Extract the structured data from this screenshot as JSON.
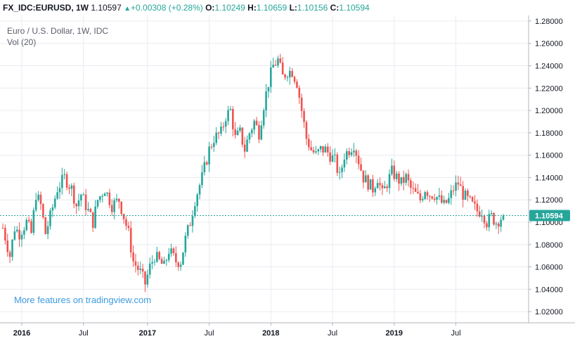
{
  "header": {
    "symbol": "FX_IDC:EURUSD, 1W",
    "last": "1.10597",
    "change_arrow": "▲",
    "change": "+0.00308 (+0.28%)",
    "open_label": "O:",
    "open": "1.10249",
    "high_label": "H:",
    "high": "1.10659",
    "low_label": "L:",
    "low": "1.10156",
    "close_label": "C:",
    "close": "1.10594"
  },
  "legend": {
    "title": "Euro / U.S. Dollar, 1W, IDC",
    "volume": "Vol (20)"
  },
  "watermark": "More features on tradingview.com",
  "last_price_label": "1.10594",
  "colors": {
    "up": "#26a69a",
    "down": "#ef5350",
    "grid": "#e9ecf1",
    "axis": "#b2b5be",
    "last_line": "#26a69a"
  },
  "chart_data": {
    "type": "candlestick",
    "title": "Euro / U.S. Dollar, 1W, IDC",
    "y_ticks": [
      "1.28000",
      "1.26000",
      "1.24000",
      "1.22000",
      "1.20000",
      "1.18000",
      "1.16000",
      "1.14000",
      "1.12000",
      "1.10000",
      "1.08000",
      "1.06000",
      "1.04000",
      "1.02000"
    ],
    "ylim": [
      1.01,
      1.285
    ],
    "x_ticks": [
      {
        "label": "2016",
        "year": true
      },
      {
        "label": "Jul",
        "year": false
      },
      {
        "label": "2017",
        "year": true
      },
      {
        "label": "Jul",
        "year": false
      },
      {
        "label": "2018",
        "year": true
      },
      {
        "label": "Jul",
        "year": false
      },
      {
        "label": "2019",
        "year": true
      },
      {
        "label": "Jul",
        "year": false
      }
    ],
    "x_tick_weeks": [
      8,
      34,
      61,
      87,
      113,
      139,
      165,
      191
    ],
    "start_week": 0,
    "end_week": 211,
    "last_close": 1.10594,
    "weekly_close_path": [
      [
        0,
        1.095
      ],
      [
        3,
        1.07
      ],
      [
        5,
        1.095
      ],
      [
        7,
        1.09
      ],
      [
        10,
        1.1
      ],
      [
        12,
        1.09
      ],
      [
        14,
        1.125
      ],
      [
        16,
        1.115
      ],
      [
        18,
        1.09
      ],
      [
        20,
        1.105
      ],
      [
        23,
        1.13
      ],
      [
        26,
        1.14
      ],
      [
        29,
        1.13
      ],
      [
        31,
        1.115
      ],
      [
        33,
        1.125
      ],
      [
        36,
        1.11
      ],
      [
        38,
        1.1
      ],
      [
        40,
        1.12
      ],
      [
        43,
        1.13
      ],
      [
        46,
        1.115
      ],
      [
        49,
        1.12
      ],
      [
        51,
        1.105
      ],
      [
        53,
        1.09
      ],
      [
        55,
        1.065
      ],
      [
        58,
        1.055
      ],
      [
        60,
        1.045
      ],
      [
        62,
        1.06
      ],
      [
        64,
        1.07
      ],
      [
        66,
        1.065
      ],
      [
        68,
        1.06
      ],
      [
        70,
        1.075
      ],
      [
        73,
        1.065
      ],
      [
        75,
        1.065
      ],
      [
        77,
        1.085
      ],
      [
        79,
        1.1
      ],
      [
        81,
        1.12
      ],
      [
        84,
        1.14
      ],
      [
        87,
        1.165
      ],
      [
        89,
        1.175
      ],
      [
        92,
        1.18
      ],
      [
        94,
        1.195
      ],
      [
        96,
        1.2
      ],
      [
        98,
        1.175
      ],
      [
        100,
        1.18
      ],
      [
        102,
        1.165
      ],
      [
        104,
        1.18
      ],
      [
        106,
        1.19
      ],
      [
        108,
        1.18
      ],
      [
        110,
        1.205
      ],
      [
        112,
        1.225
      ],
      [
        114,
        1.24
      ],
      [
        116,
        1.245
      ],
      [
        118,
        1.23
      ],
      [
        120,
        1.235
      ],
      [
        122,
        1.235
      ],
      [
        124,
        1.225
      ],
      [
        126,
        1.2
      ],
      [
        128,
        1.175
      ],
      [
        130,
        1.165
      ],
      [
        132,
        1.16
      ],
      [
        134,
        1.165
      ],
      [
        136,
        1.165
      ],
      [
        138,
        1.16
      ],
      [
        140,
        1.155
      ],
      [
        142,
        1.14
      ],
      [
        144,
        1.16
      ],
      [
        146,
        1.165
      ],
      [
        148,
        1.17
      ],
      [
        150,
        1.155
      ],
      [
        152,
        1.14
      ],
      [
        154,
        1.135
      ],
      [
        156,
        1.13
      ],
      [
        158,
        1.14
      ],
      [
        160,
        1.125
      ],
      [
        162,
        1.135
      ],
      [
        164,
        1.145
      ],
      [
        166,
        1.14
      ],
      [
        168,
        1.135
      ],
      [
        170,
        1.14
      ],
      [
        172,
        1.13
      ],
      [
        174,
        1.125
      ],
      [
        176,
        1.12
      ],
      [
        178,
        1.13
      ],
      [
        180,
        1.125
      ],
      [
        182,
        1.125
      ],
      [
        184,
        1.12
      ],
      [
        186,
        1.115
      ],
      [
        188,
        1.12
      ],
      [
        190,
        1.13
      ],
      [
        192,
        1.135
      ],
      [
        194,
        1.125
      ],
      [
        196,
        1.12
      ],
      [
        198,
        1.115
      ],
      [
        200,
        1.11
      ],
      [
        202,
        1.11
      ],
      [
        204,
        1.1
      ],
      [
        206,
        1.105
      ],
      [
        208,
        1.1
      ],
      [
        211,
        1.106
      ]
    ]
  }
}
